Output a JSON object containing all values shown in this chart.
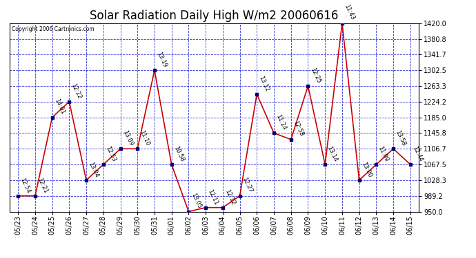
{
  "title": "Solar Radiation Daily High W/m2 20060616",
  "copyright": "Copyright 2006 Cartronics.com",
  "dates": [
    "05/23",
    "05/24",
    "05/25",
    "05/26",
    "05/27",
    "05/28",
    "05/29",
    "05/30",
    "05/31",
    "06/01",
    "06/02",
    "06/03",
    "06/04",
    "06/05",
    "06/06",
    "06/07",
    "06/08",
    "06/09",
    "06/10",
    "06/11",
    "06/12",
    "06/13",
    "06/14",
    "06/15"
  ],
  "values": [
    989.2,
    989.2,
    1185.0,
    1224.2,
    1028.3,
    1067.5,
    1106.7,
    1106.7,
    1302.5,
    1067.5,
    950.0,
    960.0,
    960.0,
    989.2,
    1243.0,
    1145.8,
    1130.0,
    1263.3,
    1067.5,
    1420.0,
    1028.3,
    1067.5,
    1106.7,
    1067.5
  ],
  "labels": [
    "12:54",
    "12:21",
    "14:01",
    "12:22",
    "13:04",
    "12:53",
    "13:09",
    "11:10",
    "13:19",
    "10:58",
    "13:05",
    "12:11",
    "12:12",
    "12:27",
    "13:12",
    "11:24",
    "12:58",
    "12:25",
    "13:14",
    "11:43",
    "13:00",
    "11:09",
    "13:58",
    "12:44"
  ],
  "ylim": [
    950.0,
    1420.0
  ],
  "yticks": [
    950.0,
    989.2,
    1028.3,
    1067.5,
    1106.7,
    1145.8,
    1185.0,
    1224.2,
    1263.3,
    1302.5,
    1341.7,
    1380.8,
    1420.0
  ],
  "line_color": "#cc0000",
  "marker_color": "#000080",
  "bg_color": "#ffffff",
  "grid_color": "#0000cc",
  "title_fontsize": 12,
  "label_fontsize": 6,
  "tick_fontsize": 7,
  "figwidth": 6.9,
  "figheight": 3.75,
  "dpi": 100
}
